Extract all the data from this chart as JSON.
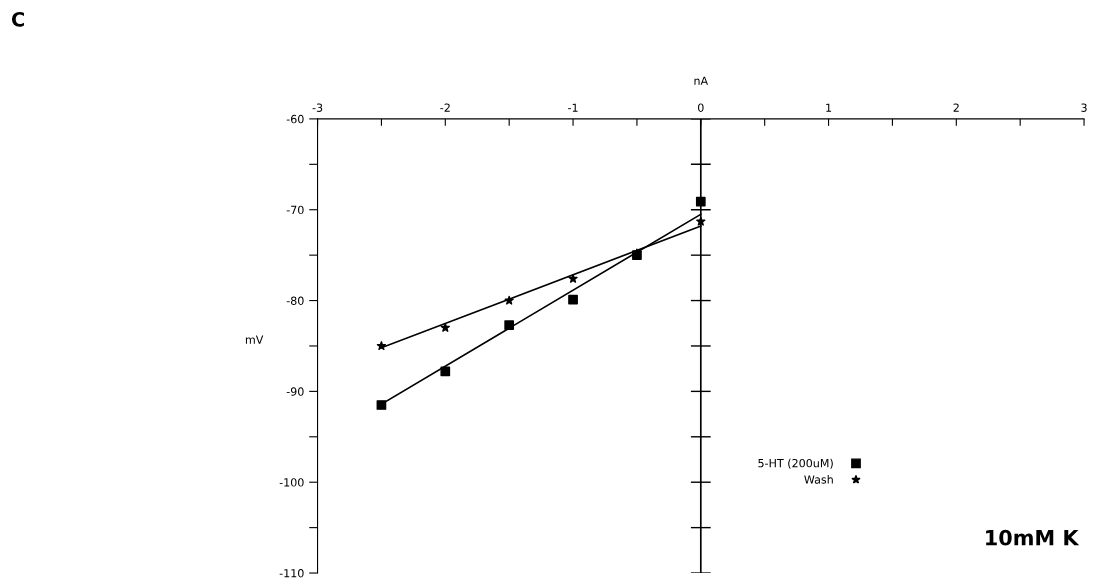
{
  "chart_data": {
    "type": "scatter",
    "xlabel": "nA",
    "ylabel": "mV",
    "x": [
      -2.5,
      -2,
      -1.5,
      -1,
      -0.5,
      0
    ],
    "series": [
      {
        "name": "5-HT (200uM)",
        "color": "#000000",
        "marker": "square",
        "values": [
          -91.5,
          -87.8,
          -82.7,
          -79.9,
          -75.0,
          -69.1
        ]
      },
      {
        "name": "Wash",
        "color": "#000000",
        "marker": "star",
        "values": [
          -85.0,
          -83.0,
          -80.0,
          -77.6,
          -74.8,
          -71.3
        ]
      },
      {
        "type": "line",
        "color": "#000000",
        "values": [
          -91.4,
          null,
          null,
          null,
          null,
          -70.5
        ]
      },
      {
        "type": "line",
        "color": "#000000",
        "values": [
          -85.2,
          null,
          null,
          null,
          null,
          -71.8
        ]
      }
    ],
    "xlim": [
      -3,
      3
    ],
    "ylim": [
      -110,
      -60
    ],
    "xticks": [
      -3,
      {
        "value": -2.5,
        "label": null
      },
      -2,
      {
        "value": -1.5,
        "label": null
      },
      -1,
      {
        "value": -0.5,
        "label": null
      },
      0,
      {
        "value": 0.5,
        "label": null
      },
      1,
      {
        "value": 1.5,
        "label": null
      },
      2,
      {
        "value": 2.5,
        "label": null
      },
      3
    ],
    "yticks": [
      -60,
      {
        "value": -65,
        "label": null
      },
      -70,
      {
        "value": -75,
        "label": null
      },
      -80,
      {
        "value": -85,
        "label": null
      },
      -90,
      {
        "value": -95,
        "label": null
      },
      -100,
      {
        "value": -105,
        "label": null
      },
      -110
    ],
    "ref_lines": [
      {
        "axis": "x",
        "value": 0,
        "color": "#000000"
      }
    ],
    "legend": "lower right",
    "grid": false,
    "annotations": [
      "C",
      "10mM K"
    ]
  }
}
